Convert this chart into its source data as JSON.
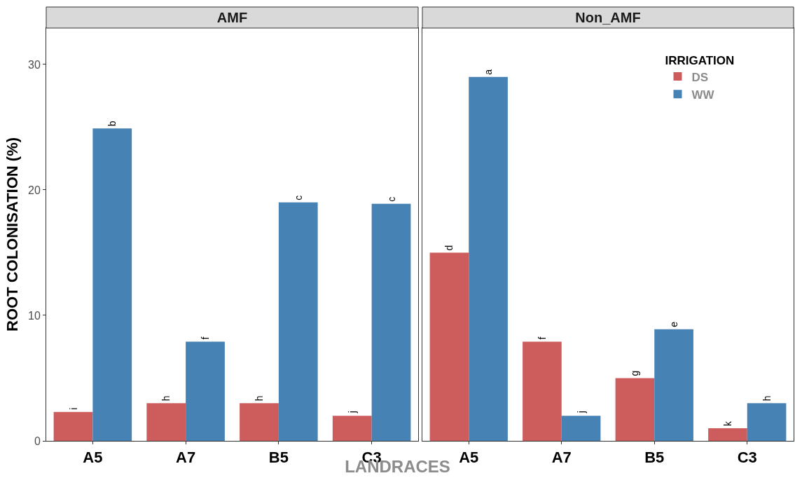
{
  "chart_data": [
    {
      "type": "bar",
      "title": "AMF",
      "xlabel": "LANDRACES",
      "ylabel": "ROOT COLONISATION (%)",
      "categories": [
        "A5",
        "A7",
        "B5",
        "C3"
      ],
      "ylim": [
        0,
        32.9
      ],
      "yticks": [
        0,
        10,
        20,
        30
      ],
      "legend": false,
      "series": [
        {
          "color": "#cd5c5c",
          "values": [
            2.3,
            3.0,
            3.0,
            2.0
          ],
          "value_labels": [
            "i",
            "h",
            "h",
            "j"
          ]
        },
        {
          "color": "#4682b4",
          "values": [
            24.9,
            7.9,
            19.0,
            18.9
          ],
          "value_labels": [
            "b",
            "f",
            "c",
            "c"
          ]
        }
      ]
    },
    {
      "type": "bar",
      "title": "Non_AMF",
      "categories": [
        "A5",
        "A7",
        "B5",
        "C3"
      ],
      "ylim": [
        0,
        32.9
      ],
      "yticks": [
        0,
        10,
        20,
        30
      ],
      "tick_labels": "x",
      "legend": "top right",
      "legend_title": "IRRIGATION",
      "series": [
        {
          "name": "DS",
          "color": "#cd5c5c",
          "values": [
            15.0,
            7.9,
            5.0,
            1.0
          ],
          "value_labels": [
            "d",
            "f",
            "g",
            "k"
          ]
        },
        {
          "name": "WW",
          "color": "#4682b4",
          "values": [
            29.0,
            2.0,
            8.9,
            3.0
          ],
          "value_labels": [
            "a",
            "j",
            "e",
            "h"
          ]
        }
      ]
    }
  ]
}
